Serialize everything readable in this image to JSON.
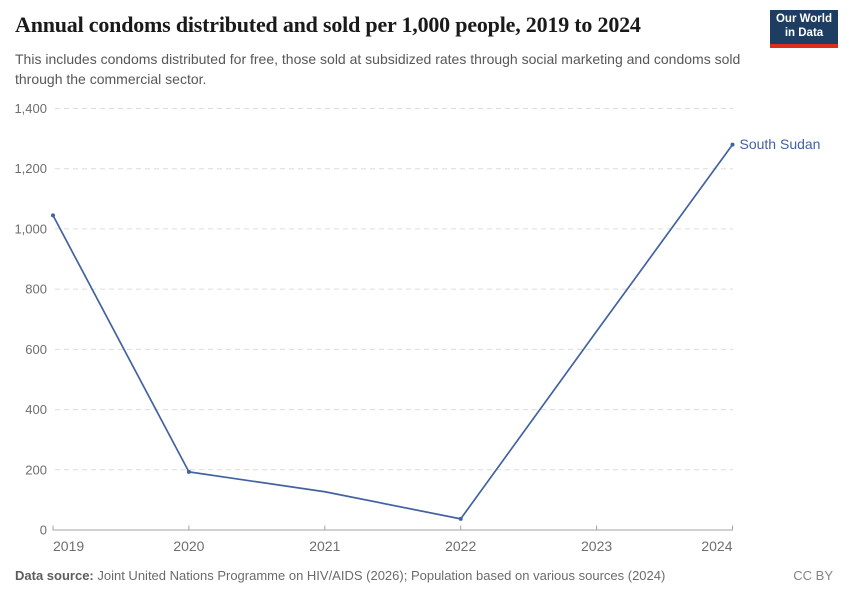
{
  "header": {
    "title": "Annual condoms distributed and sold per 1,000 people, 2019 to 2024",
    "subtitle": "This includes condoms distributed for free, those sold at subsidized rates through social marketing and condoms sold through the commercial sector.",
    "logo": {
      "line1": "Our World",
      "line2": "in Data"
    }
  },
  "chart_data": {
    "type": "line",
    "title": "Annual condoms distributed and sold per 1,000 people, 2019 to 2024",
    "xlabel": "",
    "ylabel": "",
    "ylim": [
      0,
      1400
    ],
    "ytick_interval": 200,
    "grid": true,
    "legend": "end-of-line label",
    "categories": [
      2019,
      2020,
      2021,
      2022,
      2023,
      2024
    ],
    "series": [
      {
        "name": "South Sudan",
        "x": [
          2019,
          2020,
          2021,
          2022,
          2023,
          2024
        ],
        "values": [
          1045,
          193,
          127,
          37,
          660,
          1280
        ],
        "marker_x": [
          2019,
          2020,
          2022,
          2024
        ]
      }
    ]
  },
  "footer": {
    "source_label": "Data source:",
    "source_text": " Joint United Nations Programme on HIV/AIDS (2026); Population based on various sources (2024)",
    "license": "CC BY"
  },
  "colors": {
    "line": "#4262a0",
    "gridline": "#dcdcdc",
    "axis": "#a3a3a3",
    "logo_bg": "#1d3d63",
    "logo_stripe": "#dc2e1c"
  }
}
